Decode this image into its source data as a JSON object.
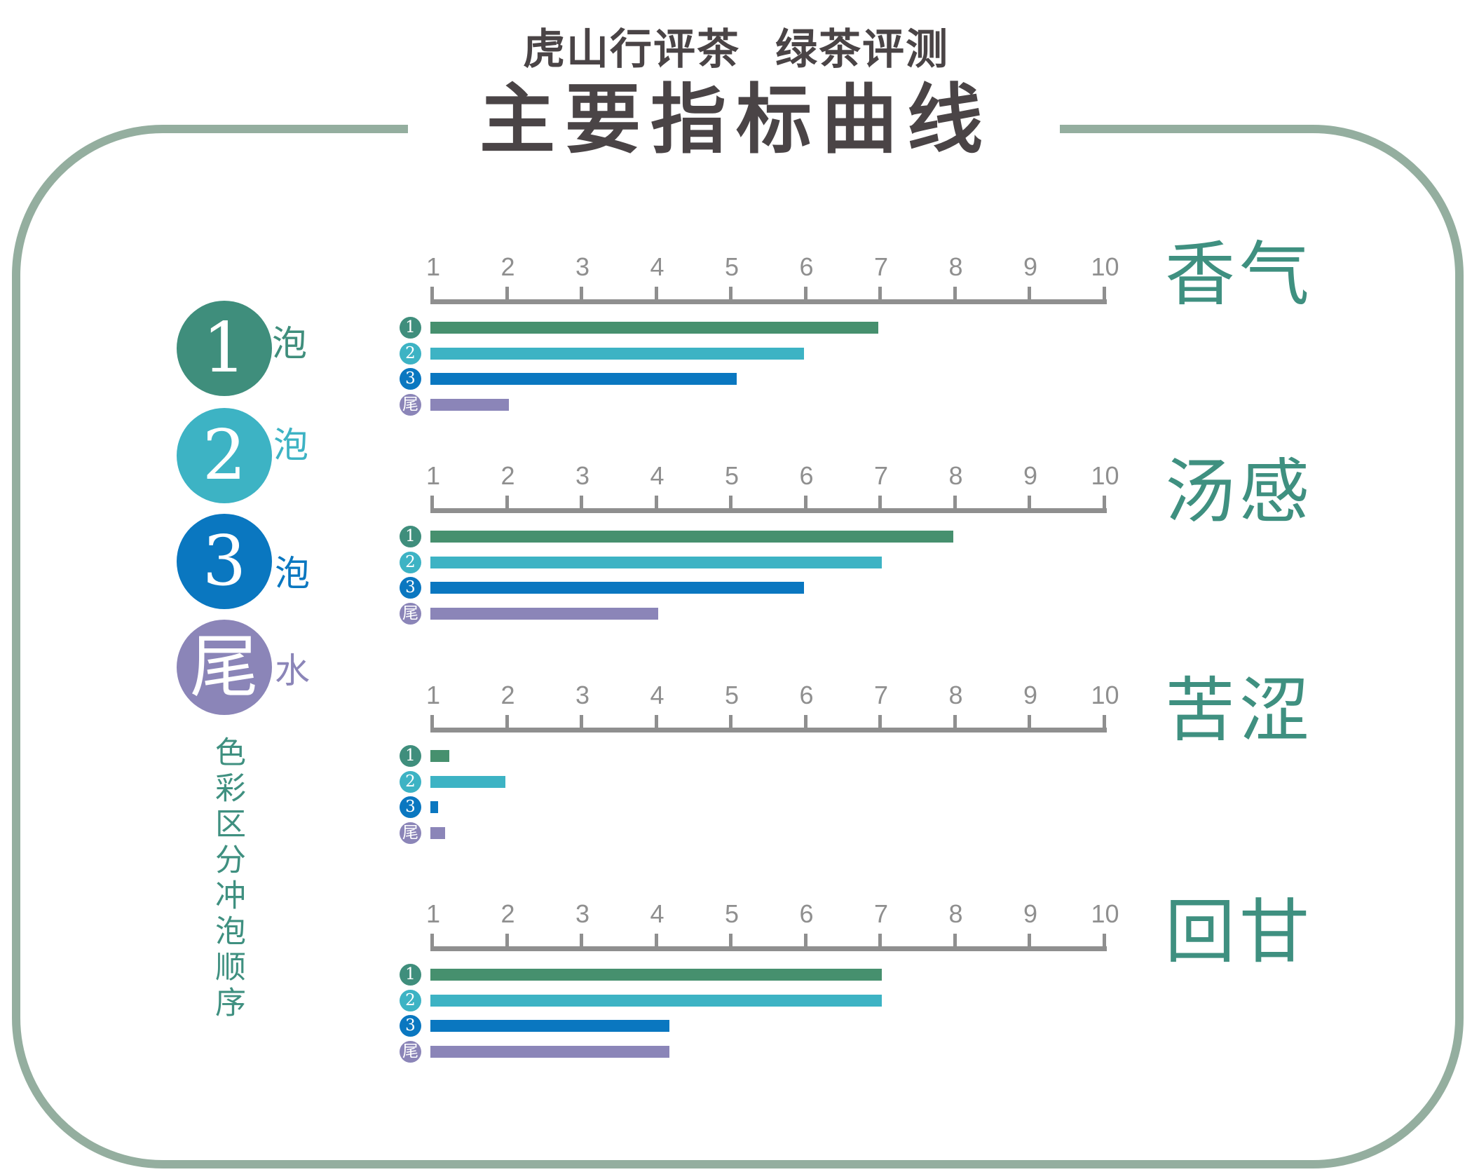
{
  "header": {
    "subtitle_left": "虎山行评茶",
    "subtitle_right": "绿茶评测",
    "title": "主要指标曲线"
  },
  "colors": {
    "frame": "#94ae9f",
    "title": "#4a4446",
    "axis": "#8f8f8f",
    "category_label": "#3f9080",
    "round1": "#46906e",
    "round2": "#3db3c4",
    "round3": "#0a77c0",
    "tail": "#8b85b8"
  },
  "legend": {
    "items": [
      {
        "badge": "1",
        "suffix": "泡",
        "color": "#3f8e7c"
      },
      {
        "badge": "2",
        "suffix": "泡",
        "color": "#3db3c4"
      },
      {
        "badge": "3",
        "suffix": "泡",
        "color": "#0a77c0"
      },
      {
        "badge": "尾",
        "suffix": "水",
        "color": "#8b85b8"
      }
    ],
    "note": "色彩区分冲泡顺序"
  },
  "chart_data": {
    "type": "bar",
    "orientation": "horizontal",
    "title": "主要指标曲线",
    "subtitle": "虎山行评茶 绿茶评测",
    "xlabel": "",
    "ylabel": "",
    "xlim": [
      1,
      10
    ],
    "x_ticks": [
      "1",
      "2",
      "3",
      "4",
      "5",
      "6",
      "7",
      "8",
      "9",
      "10"
    ],
    "grid": false,
    "legend_position": "left",
    "series_names": [
      "1泡",
      "2泡",
      "3泡",
      "尾水"
    ],
    "series_badges": [
      "1",
      "2",
      "3",
      "尾"
    ],
    "panels": [
      {
        "category": "香气",
        "values": [
          7.0,
          6.0,
          5.1,
          2.05
        ]
      },
      {
        "category": "汤感",
        "values": [
          8.0,
          7.05,
          6.0,
          4.05
        ]
      },
      {
        "category": "苦涩",
        "values": [
          1.25,
          2.0,
          1.1,
          1.2
        ]
      },
      {
        "category": "回甘",
        "values": [
          7.05,
          7.05,
          4.2,
          4.2
        ]
      }
    ]
  }
}
